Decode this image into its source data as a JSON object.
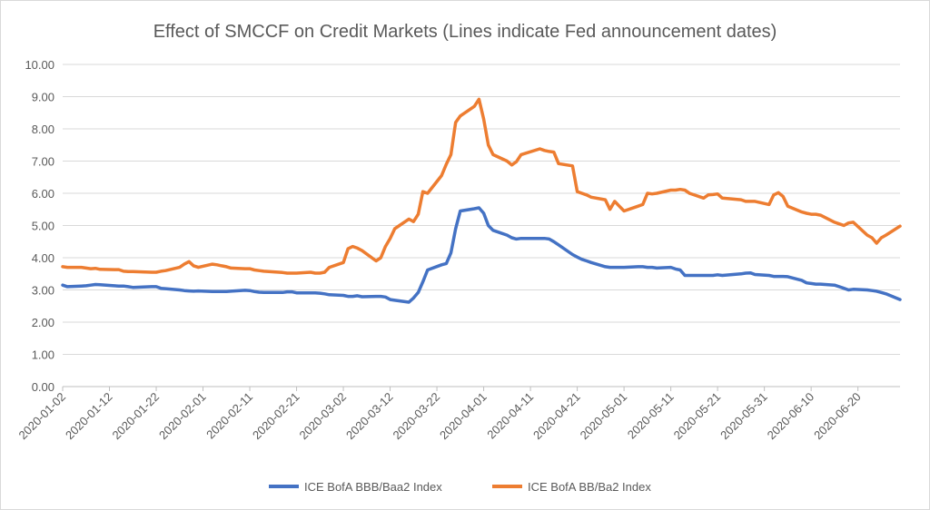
{
  "chart_data": {
    "type": "line",
    "title": "Effect of SMCCF on Credit Markets (Lines indicate Fed announcement dates)",
    "xlabel": "",
    "ylabel": "",
    "ylim": [
      0,
      10
    ],
    "y_ticks": [
      "0.00",
      "1.00",
      "2.00",
      "3.00",
      "4.00",
      "5.00",
      "6.00",
      "7.00",
      "8.00",
      "9.00",
      "10.00"
    ],
    "x_range": [
      "2020-01-02",
      "2020-06-29"
    ],
    "x_ticks": [
      "2020-01-02",
      "2020-01-12",
      "2020-01-22",
      "2020-02-01",
      "2020-02-11",
      "2020-02-21",
      "2020-03-02",
      "2020-03-12",
      "2020-03-22",
      "2020-04-01",
      "2020-04-11",
      "2020-04-21",
      "2020-05-01",
      "2020-05-11",
      "2020-05-21",
      "2020-05-31",
      "2020-06-10",
      "2020-06-20"
    ],
    "grid": true,
    "legend_position": "bottom",
    "series": [
      {
        "name": "ICE BofA BBB/Baa2 Index",
        "color": "#4472c4",
        "points": [
          [
            "2020-01-02",
            3.15
          ],
          [
            "2020-01-03",
            3.1
          ],
          [
            "2020-01-06",
            3.12
          ],
          [
            "2020-01-07",
            3.13
          ],
          [
            "2020-01-08",
            3.15
          ],
          [
            "2020-01-09",
            3.17
          ],
          [
            "2020-01-10",
            3.16
          ],
          [
            "2020-01-13",
            3.13
          ],
          [
            "2020-01-14",
            3.12
          ],
          [
            "2020-01-15",
            3.12
          ],
          [
            "2020-01-16",
            3.1
          ],
          [
            "2020-01-17",
            3.08
          ],
          [
            "2020-01-21",
            3.1
          ],
          [
            "2020-01-22",
            3.1
          ],
          [
            "2020-01-23",
            3.05
          ],
          [
            "2020-01-24",
            3.04
          ],
          [
            "2020-01-27",
            3.0
          ],
          [
            "2020-01-28",
            2.98
          ],
          [
            "2020-01-29",
            2.97
          ],
          [
            "2020-01-30",
            2.96
          ],
          [
            "2020-01-31",
            2.97
          ],
          [
            "2020-02-03",
            2.95
          ],
          [
            "2020-02-04",
            2.95
          ],
          [
            "2020-02-05",
            2.95
          ],
          [
            "2020-02-06",
            2.95
          ],
          [
            "2020-02-07",
            2.96
          ],
          [
            "2020-02-10",
            2.99
          ],
          [
            "2020-02-11",
            2.98
          ],
          [
            "2020-02-12",
            2.95
          ],
          [
            "2020-02-13",
            2.93
          ],
          [
            "2020-02-14",
            2.92
          ],
          [
            "2020-02-18",
            2.92
          ],
          [
            "2020-02-19",
            2.94
          ],
          [
            "2020-02-20",
            2.94
          ],
          [
            "2020-02-21",
            2.91
          ],
          [
            "2020-02-24",
            2.91
          ],
          [
            "2020-02-25",
            2.91
          ],
          [
            "2020-02-26",
            2.9
          ],
          [
            "2020-02-27",
            2.88
          ],
          [
            "2020-02-28",
            2.85
          ],
          [
            "2020-03-02",
            2.83
          ],
          [
            "2020-03-03",
            2.8
          ],
          [
            "2020-03-04",
            2.8
          ],
          [
            "2020-03-05",
            2.82
          ],
          [
            "2020-03-06",
            2.79
          ],
          [
            "2020-03-09",
            2.8
          ],
          [
            "2020-03-10",
            2.8
          ],
          [
            "2020-03-11",
            2.78
          ],
          [
            "2020-03-12",
            2.7
          ],
          [
            "2020-03-13",
            2.68
          ],
          [
            "2020-03-16",
            2.62
          ],
          [
            "2020-03-17",
            2.75
          ],
          [
            "2020-03-18",
            2.92
          ],
          [
            "2020-03-19",
            3.25
          ],
          [
            "2020-03-20",
            3.62
          ],
          [
            "2020-03-23",
            3.78
          ],
          [
            "2020-03-24",
            3.82
          ],
          [
            "2020-03-25",
            4.15
          ],
          [
            "2020-03-26",
            4.9
          ],
          [
            "2020-03-27",
            5.45
          ],
          [
            "2020-03-30",
            5.52
          ],
          [
            "2020-03-31",
            5.55
          ],
          [
            "2020-04-01",
            5.38
          ],
          [
            "2020-04-02",
            5.0
          ],
          [
            "2020-04-03",
            4.85
          ],
          [
            "2020-04-06",
            4.7
          ],
          [
            "2020-04-07",
            4.62
          ],
          [
            "2020-04-08",
            4.58
          ],
          [
            "2020-04-09",
            4.6
          ],
          [
            "2020-04-13",
            4.6
          ],
          [
            "2020-04-14",
            4.6
          ],
          [
            "2020-04-15",
            4.58
          ],
          [
            "2020-04-16",
            4.5
          ],
          [
            "2020-04-17",
            4.4
          ],
          [
            "2020-04-20",
            4.1
          ],
          [
            "2020-04-21",
            4.02
          ],
          [
            "2020-04-22",
            3.95
          ],
          [
            "2020-04-23",
            3.9
          ],
          [
            "2020-04-24",
            3.85
          ],
          [
            "2020-04-27",
            3.72
          ],
          [
            "2020-04-28",
            3.7
          ],
          [
            "2020-04-29",
            3.7
          ],
          [
            "2020-04-30",
            3.7
          ],
          [
            "2020-05-01",
            3.7
          ],
          [
            "2020-05-04",
            3.72
          ],
          [
            "2020-05-05",
            3.72
          ],
          [
            "2020-05-06",
            3.7
          ],
          [
            "2020-05-07",
            3.7
          ],
          [
            "2020-05-08",
            3.68
          ],
          [
            "2020-05-11",
            3.7
          ],
          [
            "2020-05-12",
            3.65
          ],
          [
            "2020-05-13",
            3.62
          ],
          [
            "2020-05-14",
            3.45
          ],
          [
            "2020-05-15",
            3.45
          ],
          [
            "2020-05-18",
            3.45
          ],
          [
            "2020-05-19",
            3.45
          ],
          [
            "2020-05-20",
            3.45
          ],
          [
            "2020-05-21",
            3.47
          ],
          [
            "2020-05-22",
            3.45
          ],
          [
            "2020-05-26",
            3.5
          ],
          [
            "2020-05-27",
            3.52
          ],
          [
            "2020-05-28",
            3.53
          ],
          [
            "2020-05-29",
            3.48
          ],
          [
            "2020-06-01",
            3.45
          ],
          [
            "2020-06-02",
            3.42
          ],
          [
            "2020-06-03",
            3.42
          ],
          [
            "2020-06-04",
            3.42
          ],
          [
            "2020-06-05",
            3.41
          ],
          [
            "2020-06-08",
            3.3
          ],
          [
            "2020-06-09",
            3.22
          ],
          [
            "2020-06-10",
            3.2
          ],
          [
            "2020-06-11",
            3.18
          ],
          [
            "2020-06-12",
            3.18
          ],
          [
            "2020-06-15",
            3.15
          ],
          [
            "2020-06-16",
            3.1
          ],
          [
            "2020-06-17",
            3.05
          ],
          [
            "2020-06-18",
            3.0
          ],
          [
            "2020-06-19",
            3.02
          ],
          [
            "2020-06-22",
            3.0
          ],
          [
            "2020-06-23",
            2.98
          ],
          [
            "2020-06-24",
            2.96
          ],
          [
            "2020-06-25",
            2.92
          ],
          [
            "2020-06-26",
            2.88
          ],
          [
            "2020-06-29",
            2.7
          ]
        ]
      },
      {
        "name": "ICE BofA BB/Ba2 Index",
        "color": "#ed7d31",
        "points": [
          [
            "2020-01-02",
            3.72
          ],
          [
            "2020-01-03",
            3.7
          ],
          [
            "2020-01-06",
            3.7
          ],
          [
            "2020-01-07",
            3.68
          ],
          [
            "2020-01-08",
            3.66
          ],
          [
            "2020-01-09",
            3.67
          ],
          [
            "2020-01-10",
            3.64
          ],
          [
            "2020-01-13",
            3.63
          ],
          [
            "2020-01-14",
            3.63
          ],
          [
            "2020-01-15",
            3.58
          ],
          [
            "2020-01-16",
            3.57
          ],
          [
            "2020-01-17",
            3.57
          ],
          [
            "2020-01-21",
            3.55
          ],
          [
            "2020-01-22",
            3.55
          ],
          [
            "2020-01-23",
            3.58
          ],
          [
            "2020-01-24",
            3.6
          ],
          [
            "2020-01-27",
            3.7
          ],
          [
            "2020-01-28",
            3.8
          ],
          [
            "2020-01-29",
            3.88
          ],
          [
            "2020-01-30",
            3.75
          ],
          [
            "2020-01-31",
            3.7
          ],
          [
            "2020-02-03",
            3.8
          ],
          [
            "2020-02-04",
            3.78
          ],
          [
            "2020-02-05",
            3.75
          ],
          [
            "2020-02-06",
            3.72
          ],
          [
            "2020-02-07",
            3.68
          ],
          [
            "2020-02-10",
            3.66
          ],
          [
            "2020-02-11",
            3.66
          ],
          [
            "2020-02-12",
            3.62
          ],
          [
            "2020-02-13",
            3.6
          ],
          [
            "2020-02-14",
            3.58
          ],
          [
            "2020-02-18",
            3.54
          ],
          [
            "2020-02-19",
            3.52
          ],
          [
            "2020-02-20",
            3.52
          ],
          [
            "2020-02-21",
            3.52
          ],
          [
            "2020-02-24",
            3.55
          ],
          [
            "2020-02-25",
            3.52
          ],
          [
            "2020-02-26",
            3.52
          ],
          [
            "2020-02-27",
            3.55
          ],
          [
            "2020-02-28",
            3.7
          ],
          [
            "2020-03-02",
            3.85
          ],
          [
            "2020-03-03",
            4.28
          ],
          [
            "2020-03-04",
            4.35
          ],
          [
            "2020-03-05",
            4.3
          ],
          [
            "2020-03-06",
            4.22
          ],
          [
            "2020-03-09",
            3.9
          ],
          [
            "2020-03-10",
            4.0
          ],
          [
            "2020-03-11",
            4.35
          ],
          [
            "2020-03-12",
            4.6
          ],
          [
            "2020-03-13",
            4.9
          ],
          [
            "2020-03-16",
            5.2
          ],
          [
            "2020-03-17",
            5.12
          ],
          [
            "2020-03-18",
            5.35
          ],
          [
            "2020-03-19",
            6.05
          ],
          [
            "2020-03-20",
            6.0
          ],
          [
            "2020-03-23",
            6.55
          ],
          [
            "2020-03-24",
            6.9
          ],
          [
            "2020-03-25",
            7.2
          ],
          [
            "2020-03-26",
            8.2
          ],
          [
            "2020-03-27",
            8.4
          ],
          [
            "2020-03-30",
            8.7
          ],
          [
            "2020-03-31",
            8.92
          ],
          [
            "2020-04-01",
            8.3
          ],
          [
            "2020-04-02",
            7.5
          ],
          [
            "2020-04-03",
            7.2
          ],
          [
            "2020-04-06",
            7.0
          ],
          [
            "2020-04-07",
            6.88
          ],
          [
            "2020-04-08",
            6.98
          ],
          [
            "2020-04-09",
            7.2
          ],
          [
            "2020-04-13",
            7.38
          ],
          [
            "2020-04-14",
            7.33
          ],
          [
            "2020-04-15",
            7.3
          ],
          [
            "2020-04-16",
            7.28
          ],
          [
            "2020-04-17",
            6.92
          ],
          [
            "2020-04-20",
            6.85
          ],
          [
            "2020-04-21",
            6.05
          ],
          [
            "2020-04-22",
            6.0
          ],
          [
            "2020-04-23",
            5.95
          ],
          [
            "2020-04-24",
            5.88
          ],
          [
            "2020-04-27",
            5.8
          ],
          [
            "2020-04-28",
            5.5
          ],
          [
            "2020-04-29",
            5.75
          ],
          [
            "2020-04-30",
            5.6
          ],
          [
            "2020-05-01",
            5.45
          ],
          [
            "2020-05-04",
            5.6
          ],
          [
            "2020-05-05",
            5.65
          ],
          [
            "2020-05-06",
            6.0
          ],
          [
            "2020-05-07",
            5.98
          ],
          [
            "2020-05-08",
            6.0
          ],
          [
            "2020-05-11",
            6.1
          ],
          [
            "2020-05-12",
            6.1
          ],
          [
            "2020-05-13",
            6.12
          ],
          [
            "2020-05-14",
            6.1
          ],
          [
            "2020-05-15",
            6.0
          ],
          [
            "2020-05-18",
            5.85
          ],
          [
            "2020-05-19",
            5.95
          ],
          [
            "2020-05-20",
            5.96
          ],
          [
            "2020-05-21",
            5.98
          ],
          [
            "2020-05-22",
            5.85
          ],
          [
            "2020-05-26",
            5.8
          ],
          [
            "2020-05-27",
            5.75
          ],
          [
            "2020-05-28",
            5.75
          ],
          [
            "2020-05-29",
            5.75
          ],
          [
            "2020-06-01",
            5.65
          ],
          [
            "2020-06-02",
            5.95
          ],
          [
            "2020-06-03",
            6.02
          ],
          [
            "2020-06-04",
            5.9
          ],
          [
            "2020-06-05",
            5.6
          ],
          [
            "2020-06-08",
            5.42
          ],
          [
            "2020-06-09",
            5.38
          ],
          [
            "2020-06-10",
            5.35
          ],
          [
            "2020-06-11",
            5.35
          ],
          [
            "2020-06-12",
            5.32
          ],
          [
            "2020-06-15",
            5.1
          ],
          [
            "2020-06-16",
            5.05
          ],
          [
            "2020-06-17",
            5.0
          ],
          [
            "2020-06-18",
            5.08
          ],
          [
            "2020-06-19",
            5.1
          ],
          [
            "2020-06-22",
            4.7
          ],
          [
            "2020-06-23",
            4.62
          ],
          [
            "2020-06-24",
            4.45
          ],
          [
            "2020-06-25",
            4.62
          ],
          [
            "2020-06-26",
            4.7
          ],
          [
            "2020-06-29",
            4.98
          ]
        ]
      }
    ]
  }
}
